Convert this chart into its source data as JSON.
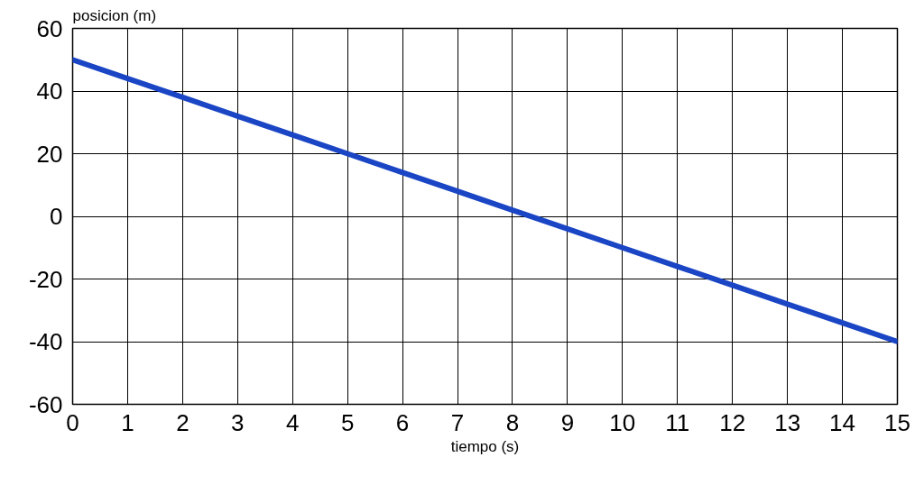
{
  "chart_data": {
    "type": "line",
    "xlabel": "tiempo (s)",
    "ylabel": "posicion (m)",
    "x": [
      0,
      1,
      2,
      3,
      4,
      5,
      6,
      7,
      8,
      9,
      10,
      11,
      12,
      13,
      14,
      15
    ],
    "series": [
      {
        "color": "#1a45c4",
        "values": [
          50,
          44,
          38,
          32,
          26,
          20,
          14,
          8,
          2,
          -4,
          -10,
          -16,
          -22,
          -28,
          -34,
          -40
        ]
      }
    ],
    "xlim": [
      0,
      15
    ],
    "ylim": [
      -60,
      60
    ],
    "xticks": [
      0,
      1,
      2,
      3,
      4,
      5,
      6,
      7,
      8,
      9,
      10,
      11,
      12,
      13,
      14,
      15
    ],
    "yticks": [
      -60,
      -40,
      -20,
      0,
      20,
      40,
      60
    ],
    "grid": true,
    "marker": "none",
    "line_style": "solid"
  }
}
